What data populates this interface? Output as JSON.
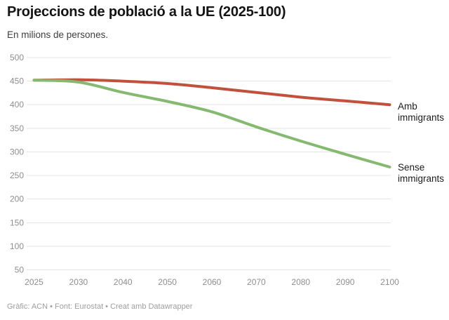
{
  "header": {
    "title": "Projeccions de població a la UE (2025-100)",
    "subtitle": "En milions de persones."
  },
  "footer": {
    "byline": "Gràfic: ACN • Font: Eurostat • Creat amb Datawrapper"
  },
  "colors": {
    "amb_immigrants_line": "#c1513c",
    "sense_immigrants_line": "#86b970",
    "gridline": "#e4e4e4",
    "tick_label": "#8e8e8e"
  },
  "chart_data": {
    "type": "line",
    "title": "Projeccions de població a la UE (2025-100)",
    "subtitle": "En milions de persones.",
    "xlabel": "",
    "ylabel": "milions de persones",
    "x": [
      2025,
      2030,
      2040,
      2050,
      2060,
      2070,
      2080,
      2090,
      2100
    ],
    "xtick_labels": [
      "2025",
      "2030",
      "2040",
      "2050",
      "2060",
      "2070",
      "2080",
      "2090",
      "2100"
    ],
    "ytick_labels": [
      "500",
      "450",
      "400",
      "350",
      "300",
      "250",
      "200",
      "150",
      "100",
      "50"
    ],
    "ylim": [
      50,
      500
    ],
    "grid": "horizontal",
    "legend_position": "labels-at-line-ends",
    "series": [
      {
        "name": "Amb immigrants",
        "color": "#c1513c",
        "values": [
          452,
          453,
          450,
          445,
          436,
          426,
          416,
          408,
          400
        ]
      },
      {
        "name": "Sense immigrants",
        "color": "#86b970",
        "values": [
          452,
          448,
          426,
          407,
          385,
          353,
          323,
          295,
          268
        ]
      }
    ]
  }
}
